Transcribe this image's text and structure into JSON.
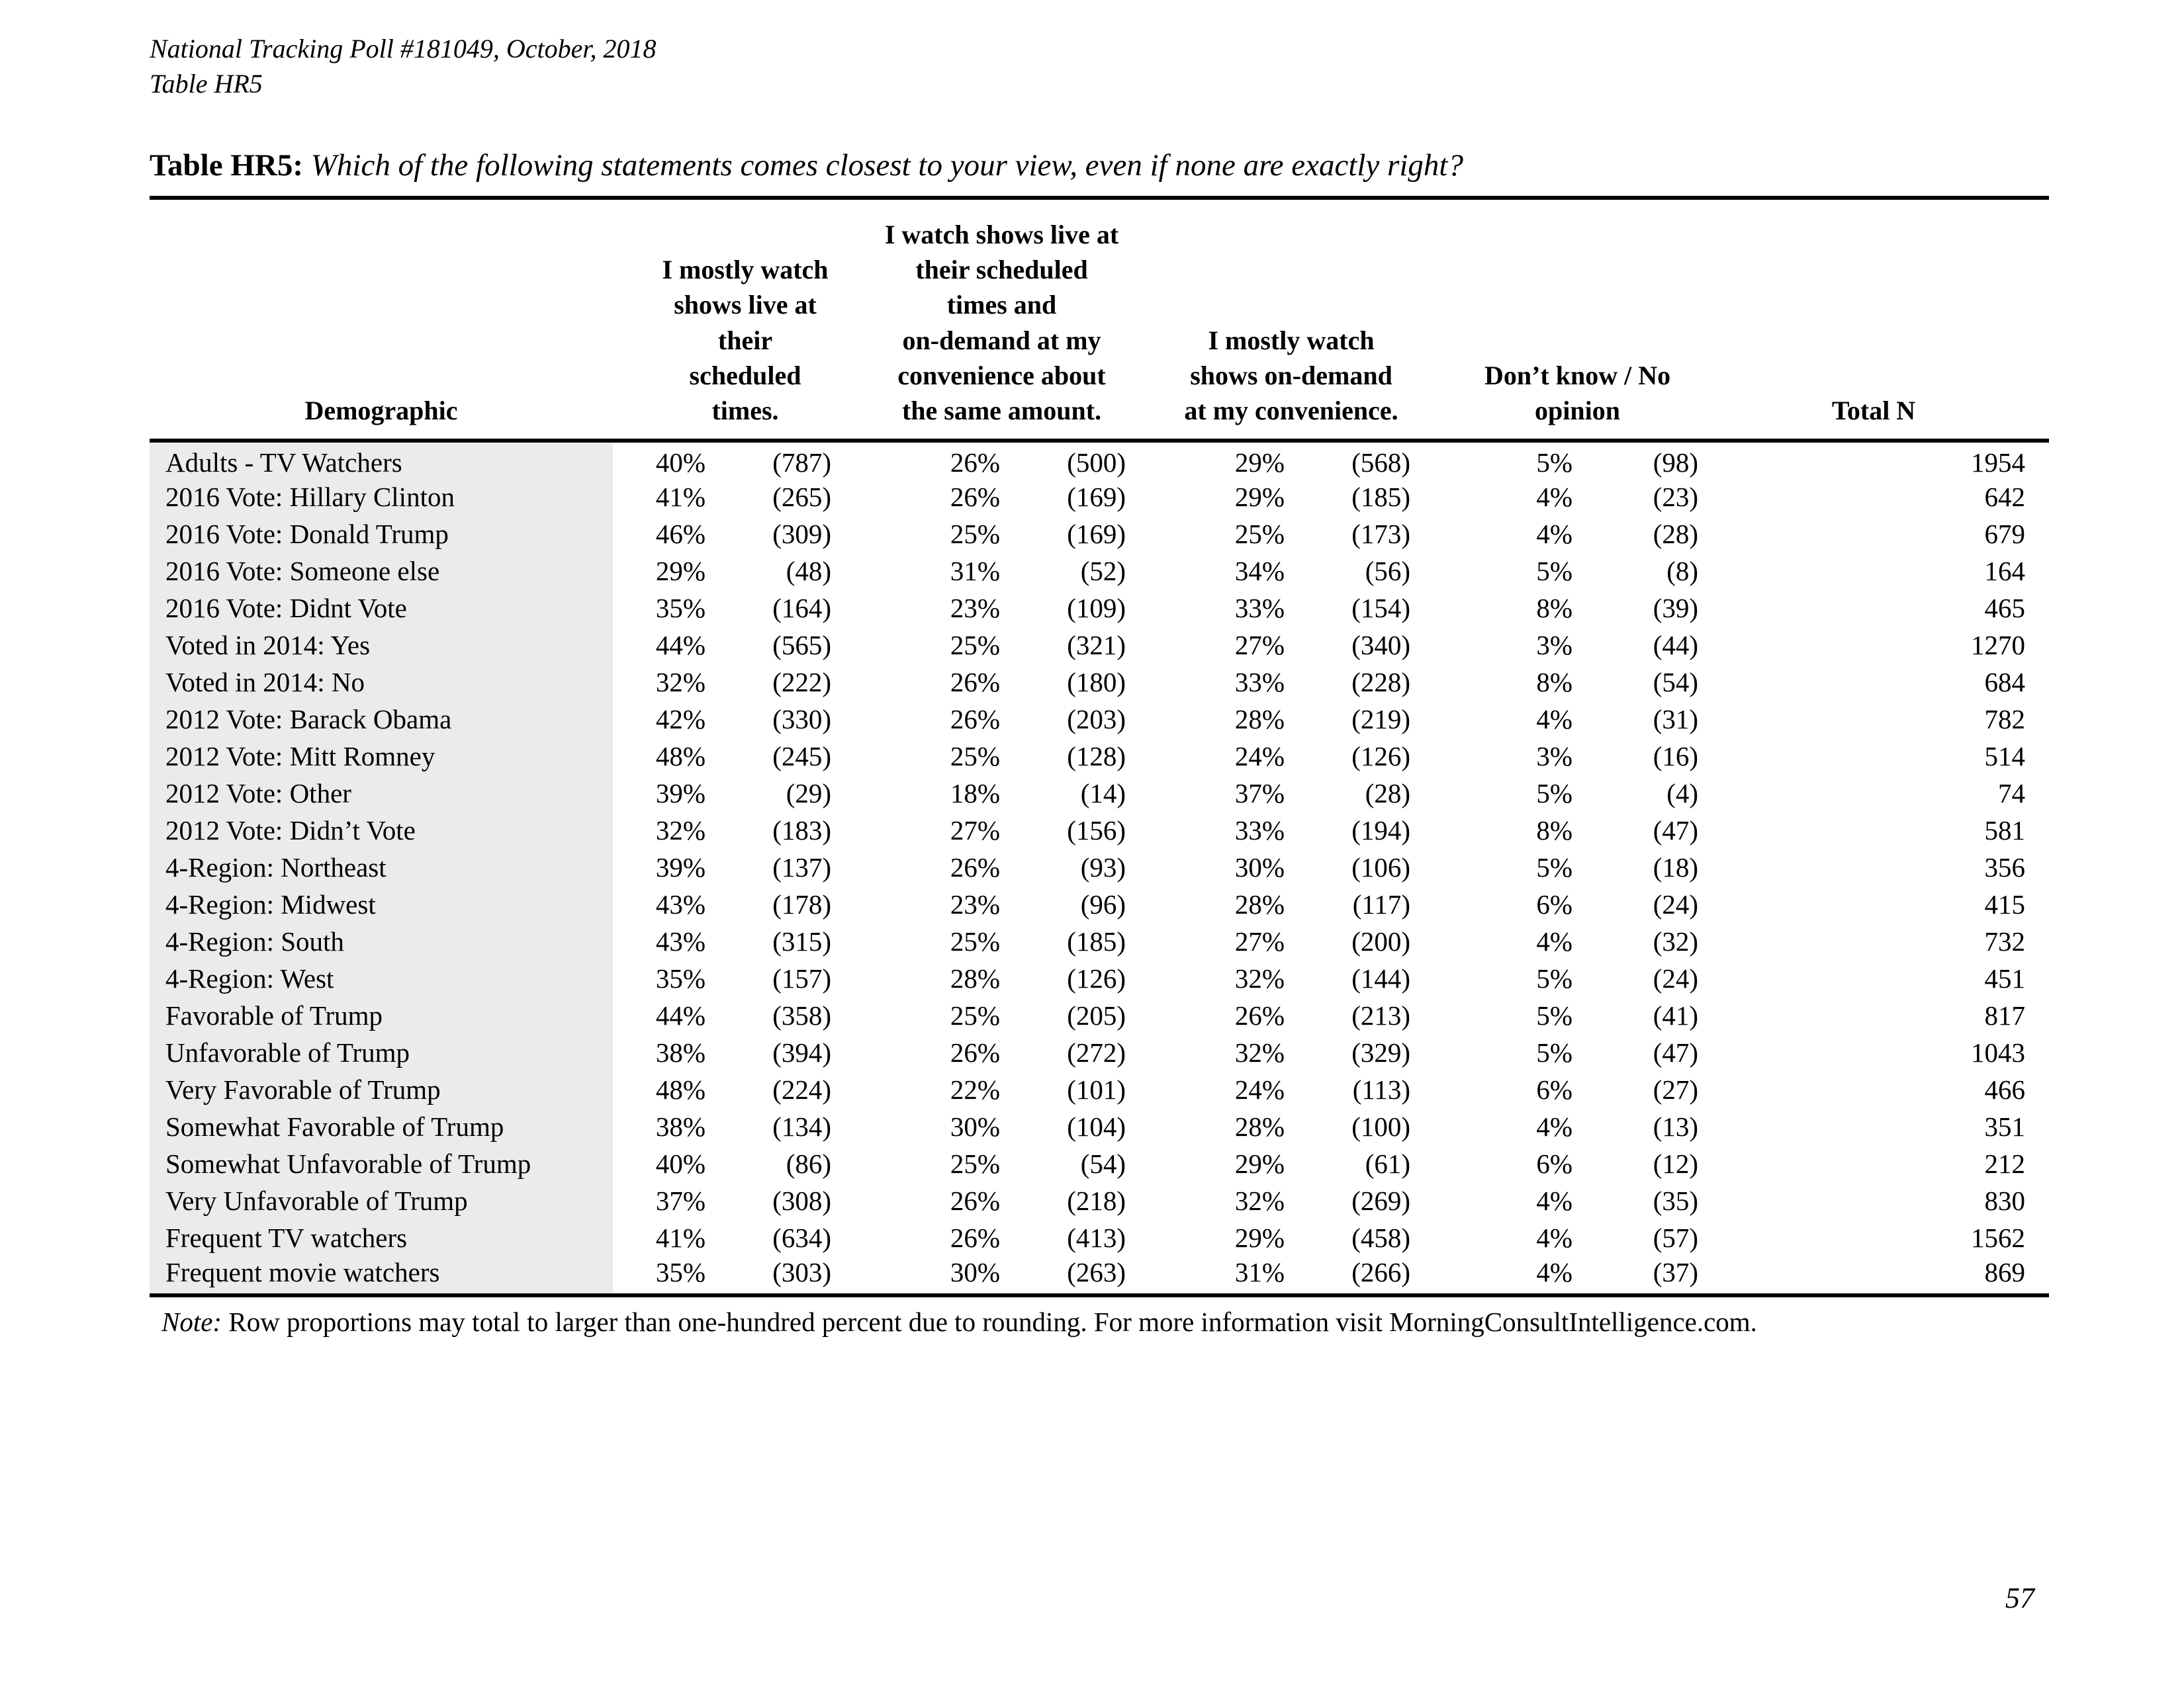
{
  "doc_header": {
    "line1": "National Tracking Poll #181049, October, 2018",
    "line2": "Table HR5"
  },
  "title": {
    "label": "Table HR5:",
    "question": "Which of the following statements comes closest to your view, even if none are exactly right?"
  },
  "table": {
    "col_headers": {
      "demographic": "Demographic",
      "group1": "I mostly watch\nshows live at their\nscheduled times.",
      "group2": "I watch shows live at\ntheir scheduled\ntimes and\non-demand at my\nconvenience about\nthe same amount.",
      "group3": "I mostly watch\nshows on-demand\nat my convenience.",
      "group4": "Don’t know / No\nopinion",
      "total": "Total N"
    },
    "rows": [
      {
        "label": "Adults - TV Watchers",
        "c1_pct": "40%",
        "c1_n": "(787)",
        "c2_pct": "26%",
        "c2_n": "(500)",
        "c3_pct": "29%",
        "c3_n": "(568)",
        "c4_pct": "5%",
        "c4_n": "(98)",
        "total": "1954"
      },
      {
        "label": "2016 Vote: Hillary Clinton",
        "c1_pct": "41%",
        "c1_n": "(265)",
        "c2_pct": "26%",
        "c2_n": "(169)",
        "c3_pct": "29%",
        "c3_n": "(185)",
        "c4_pct": "4%",
        "c4_n": "(23)",
        "total": "642"
      },
      {
        "label": "2016 Vote: Donald Trump",
        "c1_pct": "46%",
        "c1_n": "(309)",
        "c2_pct": "25%",
        "c2_n": "(169)",
        "c3_pct": "25%",
        "c3_n": "(173)",
        "c4_pct": "4%",
        "c4_n": "(28)",
        "total": "679"
      },
      {
        "label": "2016 Vote: Someone else",
        "c1_pct": "29%",
        "c1_n": "(48)",
        "c2_pct": "31%",
        "c2_n": "(52)",
        "c3_pct": "34%",
        "c3_n": "(56)",
        "c4_pct": "5%",
        "c4_n": "(8)",
        "total": "164"
      },
      {
        "label": "2016 Vote: Didnt Vote",
        "c1_pct": "35%",
        "c1_n": "(164)",
        "c2_pct": "23%",
        "c2_n": "(109)",
        "c3_pct": "33%",
        "c3_n": "(154)",
        "c4_pct": "8%",
        "c4_n": "(39)",
        "total": "465"
      },
      {
        "label": "Voted in 2014: Yes",
        "c1_pct": "44%",
        "c1_n": "(565)",
        "c2_pct": "25%",
        "c2_n": "(321)",
        "c3_pct": "27%",
        "c3_n": "(340)",
        "c4_pct": "3%",
        "c4_n": "(44)",
        "total": "1270"
      },
      {
        "label": "Voted in 2014: No",
        "c1_pct": "32%",
        "c1_n": "(222)",
        "c2_pct": "26%",
        "c2_n": "(180)",
        "c3_pct": "33%",
        "c3_n": "(228)",
        "c4_pct": "8%",
        "c4_n": "(54)",
        "total": "684"
      },
      {
        "label": "2012 Vote: Barack Obama",
        "c1_pct": "42%",
        "c1_n": "(330)",
        "c2_pct": "26%",
        "c2_n": "(203)",
        "c3_pct": "28%",
        "c3_n": "(219)",
        "c4_pct": "4%",
        "c4_n": "(31)",
        "total": "782"
      },
      {
        "label": "2012 Vote: Mitt Romney",
        "c1_pct": "48%",
        "c1_n": "(245)",
        "c2_pct": "25%",
        "c2_n": "(128)",
        "c3_pct": "24%",
        "c3_n": "(126)",
        "c4_pct": "3%",
        "c4_n": "(16)",
        "total": "514"
      },
      {
        "label": "2012 Vote: Other",
        "c1_pct": "39%",
        "c1_n": "(29)",
        "c2_pct": "18%",
        "c2_n": "(14)",
        "c3_pct": "37%",
        "c3_n": "(28)",
        "c4_pct": "5%",
        "c4_n": "(4)",
        "total": "74"
      },
      {
        "label": "2012 Vote: Didn’t Vote",
        "c1_pct": "32%",
        "c1_n": "(183)",
        "c2_pct": "27%",
        "c2_n": "(156)",
        "c3_pct": "33%",
        "c3_n": "(194)",
        "c4_pct": "8%",
        "c4_n": "(47)",
        "total": "581"
      },
      {
        "label": "4-Region: Northeast",
        "c1_pct": "39%",
        "c1_n": "(137)",
        "c2_pct": "26%",
        "c2_n": "(93)",
        "c3_pct": "30%",
        "c3_n": "(106)",
        "c4_pct": "5%",
        "c4_n": "(18)",
        "total": "356"
      },
      {
        "label": "4-Region: Midwest",
        "c1_pct": "43%",
        "c1_n": "(178)",
        "c2_pct": "23%",
        "c2_n": "(96)",
        "c3_pct": "28%",
        "c3_n": "(117)",
        "c4_pct": "6%",
        "c4_n": "(24)",
        "total": "415"
      },
      {
        "label": "4-Region: South",
        "c1_pct": "43%",
        "c1_n": "(315)",
        "c2_pct": "25%",
        "c2_n": "(185)",
        "c3_pct": "27%",
        "c3_n": "(200)",
        "c4_pct": "4%",
        "c4_n": "(32)",
        "total": "732"
      },
      {
        "label": "4-Region: West",
        "c1_pct": "35%",
        "c1_n": "(157)",
        "c2_pct": "28%",
        "c2_n": "(126)",
        "c3_pct": "32%",
        "c3_n": "(144)",
        "c4_pct": "5%",
        "c4_n": "(24)",
        "total": "451"
      },
      {
        "label": "Favorable of Trump",
        "c1_pct": "44%",
        "c1_n": "(358)",
        "c2_pct": "25%",
        "c2_n": "(205)",
        "c3_pct": "26%",
        "c3_n": "(213)",
        "c4_pct": "5%",
        "c4_n": "(41)",
        "total": "817"
      },
      {
        "label": "Unfavorable of Trump",
        "c1_pct": "38%",
        "c1_n": "(394)",
        "c2_pct": "26%",
        "c2_n": "(272)",
        "c3_pct": "32%",
        "c3_n": "(329)",
        "c4_pct": "5%",
        "c4_n": "(47)",
        "total": "1043"
      },
      {
        "label": "Very Favorable of Trump",
        "c1_pct": "48%",
        "c1_n": "(224)",
        "c2_pct": "22%",
        "c2_n": "(101)",
        "c3_pct": "24%",
        "c3_n": "(113)",
        "c4_pct": "6%",
        "c4_n": "(27)",
        "total": "466"
      },
      {
        "label": "Somewhat Favorable of Trump",
        "c1_pct": "38%",
        "c1_n": "(134)",
        "c2_pct": "30%",
        "c2_n": "(104)",
        "c3_pct": "28%",
        "c3_n": "(100)",
        "c4_pct": "4%",
        "c4_n": "(13)",
        "total": "351"
      },
      {
        "label": "Somewhat Unfavorable of Trump",
        "c1_pct": "40%",
        "c1_n": "(86)",
        "c2_pct": "25%",
        "c2_n": "(54)",
        "c3_pct": "29%",
        "c3_n": "(61)",
        "c4_pct": "6%",
        "c4_n": "(12)",
        "total": "212"
      },
      {
        "label": "Very Unfavorable of Trump",
        "c1_pct": "37%",
        "c1_n": "(308)",
        "c2_pct": "26%",
        "c2_n": "(218)",
        "c3_pct": "32%",
        "c3_n": "(269)",
        "c4_pct": "4%",
        "c4_n": "(35)",
        "total": "830"
      },
      {
        "label": "Frequent TV watchers",
        "c1_pct": "41%",
        "c1_n": "(634)",
        "c2_pct": "26%",
        "c2_n": "(413)",
        "c3_pct": "29%",
        "c3_n": "(458)",
        "c4_pct": "4%",
        "c4_n": "(57)",
        "total": "1562"
      },
      {
        "label": "Frequent movie watchers",
        "c1_pct": "35%",
        "c1_n": "(303)",
        "c2_pct": "30%",
        "c2_n": "(263)",
        "c3_pct": "31%",
        "c3_n": "(266)",
        "c4_pct": "4%",
        "c4_n": "(37)",
        "total": "869"
      }
    ]
  },
  "note": {
    "label": "Note:",
    "text": "Row proportions may total to larger than one-hundred percent due to rounding. For more information visit MorningConsultIntelligence.com."
  },
  "page_number": "57"
}
